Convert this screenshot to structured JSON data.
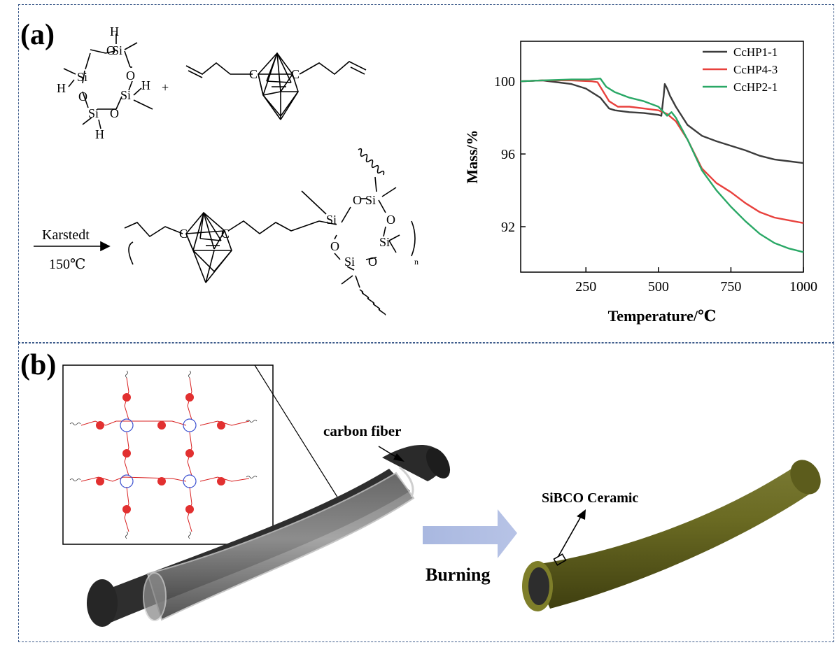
{
  "panel_a": {
    "label": "(a)",
    "reaction": {
      "plus": "+",
      "catalyst": "Karstedt",
      "temperature": "150℃",
      "repeat_index": "n",
      "atoms": {
        "si": "Si",
        "o": "O",
        "h": "H",
        "c": "C"
      }
    }
  },
  "panel_b": {
    "label": "(b)",
    "carbon_fiber_label": "carbon fiber",
    "ceramic_label": "SiBCO Ceramic",
    "process_label": "Burning"
  },
  "chart_data": {
    "type": "line",
    "xlabel": "Temperature/℃",
    "ylabel": "Mass/%",
    "xlim": [
      25,
      1000
    ],
    "ylim": [
      89.5,
      102.2
    ],
    "xticks": [
      250,
      500,
      750,
      1000
    ],
    "yticks": [
      92,
      96,
      100
    ],
    "grid": false,
    "legend_position": "top-right",
    "series": [
      {
        "name": "CcHP1-1",
        "color": "#3c3c3c",
        "x": [
          25,
          100,
          150,
          200,
          250,
          300,
          330,
          350,
          400,
          450,
          500,
          510,
          518,
          522,
          530,
          540,
          560,
          600,
          650,
          700,
          750,
          800,
          850,
          900,
          950,
          1000
        ],
        "y": [
          100.0,
          100.05,
          99.95,
          99.85,
          99.6,
          99.1,
          98.5,
          98.4,
          98.3,
          98.25,
          98.15,
          98.1,
          99.2,
          99.85,
          99.6,
          99.2,
          98.6,
          97.6,
          97.0,
          96.7,
          96.45,
          96.2,
          95.9,
          95.7,
          95.6,
          95.5
        ]
      },
      {
        "name": "CcHP4-3",
        "color": "#e8413d",
        "x": [
          25,
          100,
          200,
          270,
          290,
          330,
          360,
          400,
          450,
          500,
          530,
          560,
          600,
          650,
          700,
          750,
          800,
          850,
          900,
          950,
          1000
        ],
        "y": [
          100.0,
          100.05,
          100.05,
          100.0,
          99.95,
          98.9,
          98.6,
          98.6,
          98.5,
          98.4,
          98.2,
          97.8,
          96.8,
          95.2,
          94.4,
          93.9,
          93.3,
          92.8,
          92.5,
          92.35,
          92.2
        ]
      },
      {
        "name": "CcHP2-1",
        "color": "#2aa866",
        "x": [
          25,
          100,
          200,
          260,
          300,
          320,
          350,
          400,
          450,
          500,
          530,
          545,
          560,
          600,
          650,
          700,
          750,
          800,
          850,
          900,
          950,
          1000
        ],
        "y": [
          100.0,
          100.05,
          100.1,
          100.1,
          100.15,
          99.7,
          99.4,
          99.1,
          98.9,
          98.6,
          98.1,
          98.3,
          98.0,
          96.8,
          95.1,
          94.0,
          93.1,
          92.3,
          91.6,
          91.1,
          90.8,
          90.6
        ]
      }
    ]
  }
}
